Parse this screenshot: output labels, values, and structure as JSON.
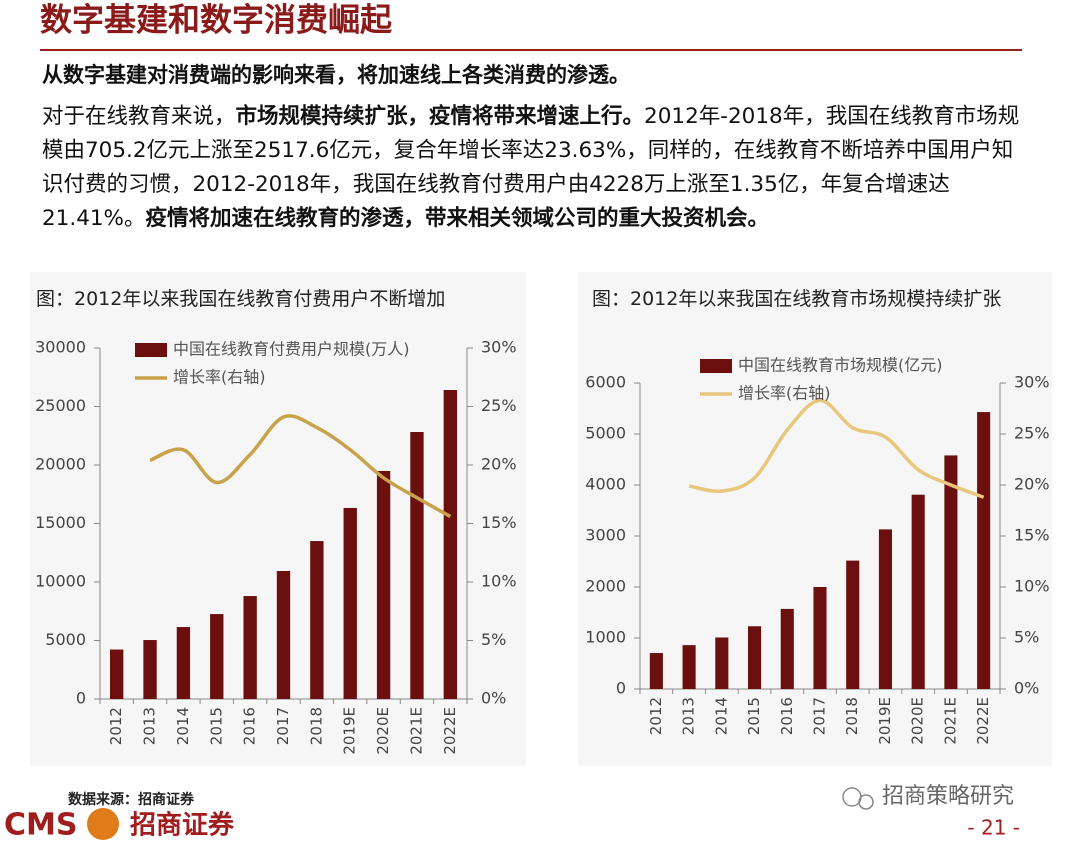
{
  "header": {
    "title": "数字基建和数字消费崛起",
    "subtitle": "从数字基建对消费端的影响来看，将加速线上各类消费的渗透。"
  },
  "paragraph": [
    "对于在线教育来说，",
    "市场规模持续扩张，疫情将带来增速上行。",
    "2012年-2018年，我国在线教育市场规模由705.2亿元上涨至2517.6亿元，复合年增长率达23.63%，同样的，在线教育不断培养中国用户知识付费的习惯，2012-2018年，我国在线教育付费用户由4228万上涨至1.35亿，年复合增速达21.41%。",
    "疫情将加速在线教育的渗透，带来相关领域公司的重大投资机会。"
  ],
  "chart_data": [
    {
      "type": "bar",
      "title": "图：2012年以来我国在线教育付费用户不断增加",
      "categories": [
        "2012",
        "2013",
        "2014",
        "2015",
        "2016",
        "2017",
        "2018",
        "2019E",
        "2020E",
        "2021E",
        "2022E"
      ],
      "series": [
        {
          "name": "中国在线教育付费用户规模(万人)",
          "color": "#6b0f0f",
          "values": [
            4228,
            5040,
            6150,
            7260,
            8800,
            10940,
            13500,
            16330,
            19490,
            22820,
            26410
          ]
        },
        {
          "name": "增长率(右轴)",
          "color": "#c8a24a",
          "type": "line",
          "axis": "y2",
          "values": [
            null,
            20.4,
            21.3,
            18.5,
            20.9,
            24.1,
            23.2,
            21.3,
            18.9,
            17.2,
            15.6
          ]
        }
      ],
      "ylim": [
        0,
        30000
      ],
      "yticks": [
        0,
        5000,
        10000,
        15000,
        20000,
        25000,
        30000
      ],
      "y2lim": [
        0,
        30
      ],
      "y2ticks": [
        {
          "value": 0,
          "label": "0%"
        },
        {
          "value": 5,
          "label": "5%"
        },
        {
          "value": 10,
          "label": "10%"
        },
        {
          "value": 15,
          "label": "15%"
        },
        {
          "value": 20,
          "label": "20%"
        },
        {
          "value": 25,
          "label": "25%"
        },
        {
          "value": 30,
          "label": "30%"
        }
      ],
      "legend": "top"
    },
    {
      "type": "bar",
      "title": "图：2012年以来我国在线教育市场规模持续扩张",
      "categories": [
        "2012",
        "2013",
        "2014",
        "2015",
        "2016",
        "2017",
        "2018",
        "2019E",
        "2020E",
        "2021E",
        "2022E"
      ],
      "series": [
        {
          "name": "中国在线教育市场规模(亿元)",
          "color": "#6b0f0f",
          "values": [
            705.2,
            860,
            1010,
            1230,
            1570,
            2000,
            2517.6,
            3130,
            3810,
            4580,
            5430
          ]
        },
        {
          "name": "增长率(右轴)",
          "color": "#e8c67c",
          "type": "line",
          "axis": "y2",
          "values": [
            null,
            19.9,
            19.4,
            20.7,
            25.4,
            28.3,
            25.6,
            24.7,
            21.5,
            20,
            18.8
          ]
        }
      ],
      "ylim": [
        0,
        6000
      ],
      "yticks": [
        0,
        1000,
        2000,
        3000,
        4000,
        5000,
        6000
      ],
      "y2lim": [
        0,
        30
      ],
      "y2ticks": [
        {
          "value": 0,
          "label": "0%"
        },
        {
          "value": 5,
          "label": "5%"
        },
        {
          "value": 10,
          "label": "10%"
        },
        {
          "value": 15,
          "label": "15%"
        },
        {
          "value": 20,
          "label": "20%"
        },
        {
          "value": 25,
          "label": "25%"
        },
        {
          "value": 30,
          "label": "30%"
        }
      ],
      "legend": "top"
    }
  ],
  "footer": {
    "source": "数据来源：招商证券",
    "logo_text": "CMS",
    "logo_name": "招商证券",
    "wechat": "招商策略研究",
    "page": "- 21 -"
  }
}
